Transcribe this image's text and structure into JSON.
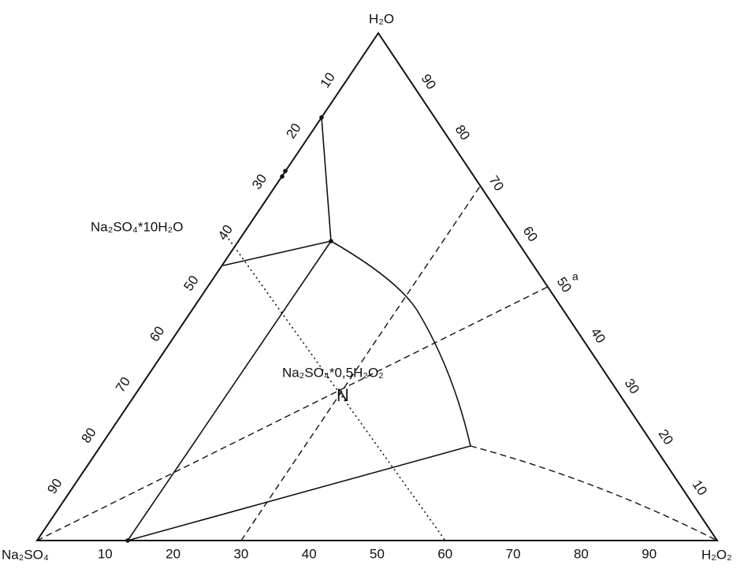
{
  "vertices": {
    "top": "H₂O",
    "left": "Na₂SO₄",
    "right": "H₂O₂"
  },
  "axes": {
    "bottom": [
      10,
      20,
      30,
      40,
      50,
      60,
      70,
      80,
      90
    ],
    "left": [
      10,
      20,
      30,
      40,
      50,
      60,
      70,
      80,
      90
    ],
    "right": [
      10,
      20,
      30,
      40,
      50,
      60,
      70,
      80,
      90
    ]
  },
  "labels": {
    "decahydrate": "Na₂SO₄*10H₂O",
    "peroxide_adduct": "Na₂SO₄*0,5H₂O₂",
    "point_a": "a",
    "point_n": "N"
  }
}
